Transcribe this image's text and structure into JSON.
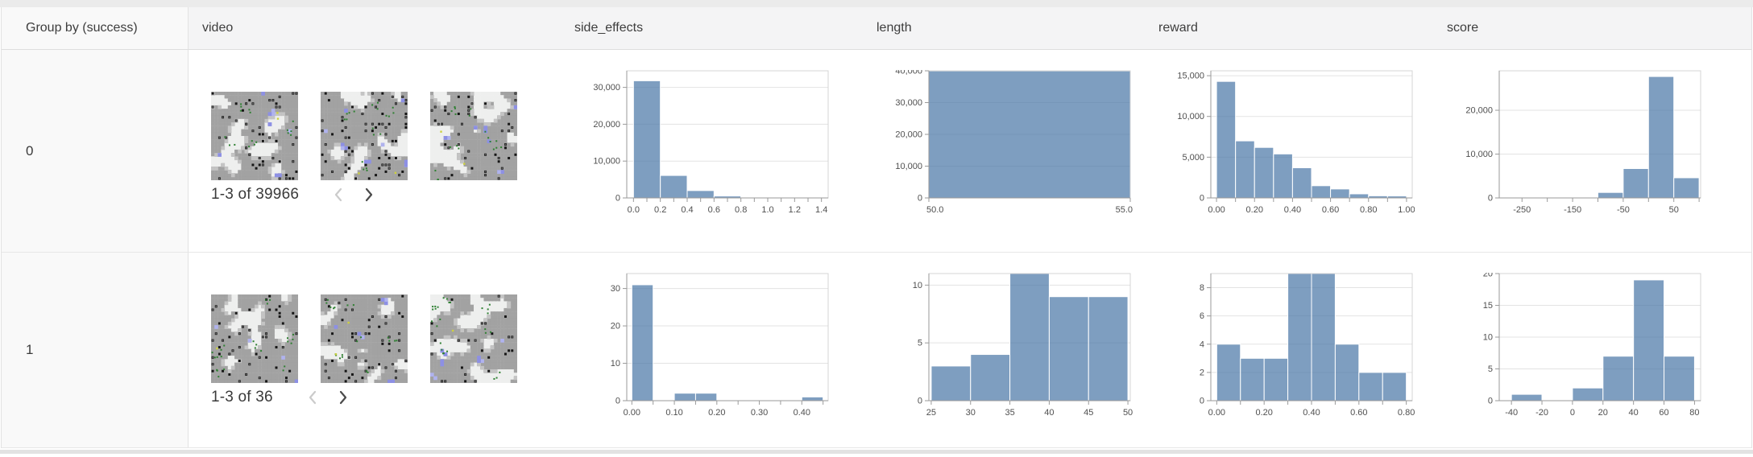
{
  "header": {
    "columns": [
      "Group by (success)",
      "video",
      "side_effects",
      "length",
      "reward",
      "score"
    ]
  },
  "rows": [
    {
      "group": "0",
      "video": {
        "pagination": "1-3 of 39966",
        "prev_enabled": false,
        "next_enabled": true
      }
    },
    {
      "group": "1",
      "video": {
        "pagination": "1-3 of 36",
        "prev_enabled": false,
        "next_enabled": true
      }
    }
  ],
  "colors": {
    "bar_fill": "#4c78a8",
    "bar_opacity": 0.72,
    "grid": "#e3e3e3",
    "plot_border": "#d4d4d4",
    "axis": "#9a9a9a",
    "tick_label": "#4f4f4f",
    "header_bg": "#f4f4f5",
    "group_cell_bg": "#f9f9f9",
    "pager_disabled": "#cbcbcb",
    "pager_enabled": "#4a4a4a",
    "thumb_white": "#eeefee",
    "thumb_gray": "#a2a2a2",
    "thumb_light_gray": "#c4c4c4",
    "thumb_black": "#161616",
    "thumb_purple": "#8d90e4",
    "thumb_green": "#2f8032",
    "thumb_yellow": "#cdd13f"
  },
  "chart_data": [
    {
      "type": "bar",
      "row": "0",
      "column": "side_effects",
      "xdomain": [
        -0.05,
        1.45
      ],
      "ydomain": [
        0,
        34500
      ],
      "xticks": [
        [
          0,
          "0.0"
        ],
        [
          0.1,
          ""
        ],
        [
          0.2,
          "0.2"
        ],
        [
          0.3,
          ""
        ],
        [
          0.4,
          "0.4"
        ],
        [
          0.5,
          ""
        ],
        [
          0.6,
          "0.6"
        ],
        [
          0.7,
          ""
        ],
        [
          0.8,
          "0.8"
        ],
        [
          0.9,
          ""
        ],
        [
          1.0,
          "1.0"
        ],
        [
          1.1,
          ""
        ],
        [
          1.2,
          "1.2"
        ],
        [
          1.3,
          ""
        ],
        [
          1.4,
          "1.4"
        ]
      ],
      "yticks": [
        [
          0,
          "0"
        ],
        [
          10000,
          "10,000"
        ],
        [
          20000,
          "20,000"
        ],
        [
          30000,
          "30,000"
        ]
      ],
      "bins": [
        [
          0,
          0.2,
          31800
        ],
        [
          0.2,
          0.4,
          6100
        ],
        [
          0.4,
          0.6,
          2000
        ],
        [
          0.6,
          0.8,
          520
        ],
        [
          0.8,
          1.0,
          150
        ]
      ]
    },
    {
      "type": "bar",
      "row": "0",
      "column": "length",
      "xdomain": [
        50,
        55
      ],
      "ydomain": [
        0,
        40000
      ],
      "xticks": [
        [
          50,
          "50.0"
        ],
        [
          55,
          "55.0"
        ]
      ],
      "yticks": [
        [
          0,
          "0"
        ],
        [
          10000,
          "10,000"
        ],
        [
          20000,
          "20,000"
        ],
        [
          30000,
          "30,000"
        ],
        [
          40000,
          "40,000"
        ]
      ],
      "bins": [
        [
          50,
          55,
          39966
        ]
      ]
    },
    {
      "type": "bar",
      "row": "0",
      "column": "reward",
      "xdomain": [
        -0.03,
        1.03
      ],
      "ydomain": [
        0,
        15600
      ],
      "xticks": [
        [
          0,
          "0.00"
        ],
        [
          0.1,
          ""
        ],
        [
          0.2,
          "0.20"
        ],
        [
          0.3,
          ""
        ],
        [
          0.4,
          "0.40"
        ],
        [
          0.5,
          ""
        ],
        [
          0.6,
          "0.60"
        ],
        [
          0.7,
          ""
        ],
        [
          0.8,
          "0.80"
        ],
        [
          0.9,
          ""
        ],
        [
          1.0,
          "1.00"
        ]
      ],
      "yticks": [
        [
          0,
          "0"
        ],
        [
          5000,
          "5,000"
        ],
        [
          10000,
          "10,000"
        ],
        [
          15000,
          "15,000"
        ]
      ],
      "bins": [
        [
          0,
          0.1,
          14300
        ],
        [
          0.1,
          0.2,
          7000
        ],
        [
          0.2,
          0.3,
          6200
        ],
        [
          0.3,
          0.4,
          5400
        ],
        [
          0.4,
          0.5,
          3700
        ],
        [
          0.5,
          0.6,
          1500
        ],
        [
          0.6,
          0.7,
          1100
        ],
        [
          0.7,
          0.8,
          500
        ],
        [
          0.8,
          0.9,
          260
        ],
        [
          0.9,
          1.0,
          240
        ]
      ]
    },
    {
      "type": "bar",
      "row": "0",
      "column": "score",
      "xdomain": [
        -295,
        103
      ],
      "ydomain": [
        0,
        29000
      ],
      "xticks": [
        [
          -250,
          "-250"
        ],
        [
          -200,
          ""
        ],
        [
          -150,
          "-150"
        ],
        [
          -100,
          ""
        ],
        [
          -50,
          "-50"
        ],
        [
          0,
          ""
        ],
        [
          50,
          "50"
        ],
        [
          100,
          ""
        ]
      ],
      "yticks": [
        [
          0,
          "0"
        ],
        [
          10000,
          "10,000"
        ],
        [
          20000,
          "20,000"
        ]
      ],
      "bins": [
        [
          -250,
          -200,
          60
        ],
        [
          -200,
          -150,
          90
        ],
        [
          -150,
          -100,
          170
        ],
        [
          -100,
          -50,
          1250
        ],
        [
          -50,
          0,
          6700
        ],
        [
          0,
          50,
          27700
        ],
        [
          50,
          100,
          4600
        ]
      ]
    },
    {
      "type": "bar",
      "row": "1",
      "column": "side_effects",
      "xdomain": [
        -0.012,
        0.462
      ],
      "ydomain": [
        0,
        34
      ],
      "xticks": [
        [
          0,
          "0.00"
        ],
        [
          0.05,
          ""
        ],
        [
          0.1,
          "0.10"
        ],
        [
          0.15,
          ""
        ],
        [
          0.2,
          "0.20"
        ],
        [
          0.25,
          ""
        ],
        [
          0.3,
          "0.30"
        ],
        [
          0.35,
          ""
        ],
        [
          0.4,
          "0.40"
        ],
        [
          0.45,
          ""
        ]
      ],
      "yticks": [
        [
          0,
          "0"
        ],
        [
          10,
          "10"
        ],
        [
          20,
          "20"
        ],
        [
          30,
          "30"
        ]
      ],
      "bins": [
        [
          0,
          0.05,
          31
        ],
        [
          0.1,
          0.15,
          2
        ],
        [
          0.15,
          0.2,
          2
        ],
        [
          0.4,
          0.45,
          1
        ]
      ]
    },
    {
      "type": "bar",
      "row": "1",
      "column": "length",
      "xdomain": [
        24.7,
        50.3
      ],
      "ydomain": [
        0,
        11
      ],
      "xticks": [
        [
          25,
          "25"
        ],
        [
          30,
          "30"
        ],
        [
          35,
          "35"
        ],
        [
          40,
          "40"
        ],
        [
          45,
          "45"
        ],
        [
          50,
          "50"
        ]
      ],
      "yticks": [
        [
          0,
          "0"
        ],
        [
          5,
          "5"
        ],
        [
          10,
          "10"
        ]
      ],
      "bins": [
        [
          25,
          30,
          3
        ],
        [
          30,
          35,
          4
        ],
        [
          35,
          40,
          11
        ],
        [
          40,
          45,
          9
        ],
        [
          45,
          50,
          9
        ]
      ]
    },
    {
      "type": "bar",
      "row": "1",
      "column": "reward",
      "xdomain": [
        -0.025,
        0.825
      ],
      "ydomain": [
        0,
        9
      ],
      "xticks": [
        [
          0,
          "0.00"
        ],
        [
          0.1,
          ""
        ],
        [
          0.2,
          "0.20"
        ],
        [
          0.3,
          ""
        ],
        [
          0.4,
          "0.40"
        ],
        [
          0.5,
          ""
        ],
        [
          0.6,
          "0.60"
        ],
        [
          0.7,
          ""
        ],
        [
          0.8,
          "0.80"
        ]
      ],
      "yticks": [
        [
          0,
          "0"
        ],
        [
          2,
          "2"
        ],
        [
          4,
          "4"
        ],
        [
          6,
          "6"
        ],
        [
          8,
          "8"
        ]
      ],
      "bins": [
        [
          0,
          0.1,
          4
        ],
        [
          0.1,
          0.2,
          3
        ],
        [
          0.2,
          0.3,
          3
        ],
        [
          0.3,
          0.4,
          9
        ],
        [
          0.4,
          0.5,
          9
        ],
        [
          0.5,
          0.6,
          4
        ],
        [
          0.6,
          0.7,
          2
        ],
        [
          0.7,
          0.8,
          2
        ]
      ]
    },
    {
      "type": "bar",
      "row": "1",
      "column": "score",
      "xdomain": [
        -48,
        84
      ],
      "ydomain": [
        0,
        20
      ],
      "xticks": [
        [
          -40,
          "-40"
        ],
        [
          -20,
          "-20"
        ],
        [
          0,
          "0"
        ],
        [
          20,
          "20"
        ],
        [
          40,
          "40"
        ],
        [
          60,
          "60"
        ],
        [
          80,
          "80"
        ]
      ],
      "yticks": [
        [
          0,
          "0"
        ],
        [
          5,
          "5"
        ],
        [
          10,
          "10"
        ],
        [
          15,
          "15"
        ],
        [
          20,
          "20"
        ]
      ],
      "bins": [
        [
          -40,
          -20,
          1
        ],
        [
          0,
          20,
          2
        ],
        [
          20,
          40,
          7
        ],
        [
          40,
          60,
          19
        ],
        [
          60,
          80,
          7
        ]
      ]
    }
  ]
}
